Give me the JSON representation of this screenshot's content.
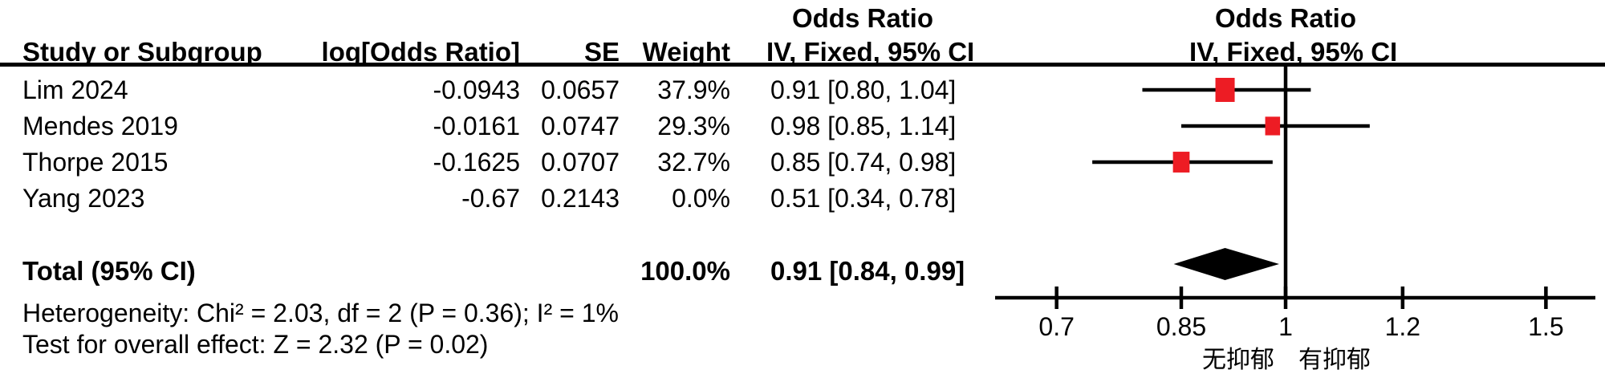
{
  "header": {
    "group_title_table": "Odds Ratio",
    "group_title_plot": "Odds Ratio",
    "study_col": "Study or Subgroup",
    "log_or_col": "log[Odds Ratio]",
    "se_col": "SE",
    "weight_col": "Weight",
    "method_col_table": "IV, Fixed, 95% CI",
    "method_col_plot": "IV, Fixed, 95% CI"
  },
  "table": {
    "rows": [
      {
        "study": "Lim 2024",
        "log_or": "-0.0943",
        "se": "0.0657",
        "weight": "37.9%",
        "or_ci": "0.91 [0.80, 1.04]"
      },
      {
        "study": "Mendes 2019",
        "log_or": "-0.0161",
        "se": "0.0747",
        "weight": "29.3%",
        "or_ci": "0.98 [0.85, 1.14]"
      },
      {
        "study": "Thorpe 2015",
        "log_or": "-0.1625",
        "se": "0.0707",
        "weight": "32.7%",
        "or_ci": "0.85 [0.74, 0.98]"
      },
      {
        "study": "Yang 2023",
        "log_or": "-0.67",
        "se": "0.2143",
        "weight": "0.0%",
        "or_ci": "0.51 [0.34, 0.78]"
      }
    ],
    "total": {
      "label": "Total (95% CI)",
      "weight": "100.0%",
      "or_ci": "0.91 [0.84, 0.99]"
    },
    "heterogeneity": "Heterogeneity: Chi² = 2.03, df = 2 (P = 0.36); I² = 1%",
    "overall_effect": "Test for overall effect: Z = 2.32 (P = 0.02)"
  },
  "chart_data": {
    "type": "scatter",
    "subtype": "forest-plot",
    "title": "Odds Ratio",
    "method": "IV, Fixed, 95% CI",
    "x_scale": "log",
    "x_ticks": [
      0.7,
      0.85,
      1,
      1.2,
      1.5
    ],
    "x_tick_labels": [
      "0.7",
      "0.85",
      "1",
      "1.2",
      "1.5"
    ],
    "x_range": [
      0.63,
      1.62
    ],
    "null_value": 1,
    "favours_left": "无抑郁",
    "favours_right": "有抑郁",
    "marker_color": "#ED1C24",
    "line_color": "#000000",
    "studies": [
      {
        "name": "Lim 2024",
        "or": 0.91,
        "ci_low": 0.8,
        "ci_high": 1.04,
        "weight_pct": 37.9,
        "plotted": true
      },
      {
        "name": "Mendes 2019",
        "or": 0.98,
        "ci_low": 0.85,
        "ci_high": 1.14,
        "weight_pct": 29.3,
        "plotted": true
      },
      {
        "name": "Thorpe 2015",
        "or": 0.85,
        "ci_low": 0.74,
        "ci_high": 0.98,
        "weight_pct": 32.7,
        "plotted": true
      },
      {
        "name": "Yang 2023",
        "or": 0.51,
        "ci_low": 0.34,
        "ci_high": 0.78,
        "weight_pct": 0.0,
        "plotted": false
      }
    ],
    "total": {
      "or": 0.91,
      "ci_low": 0.84,
      "ci_high": 0.99
    }
  }
}
